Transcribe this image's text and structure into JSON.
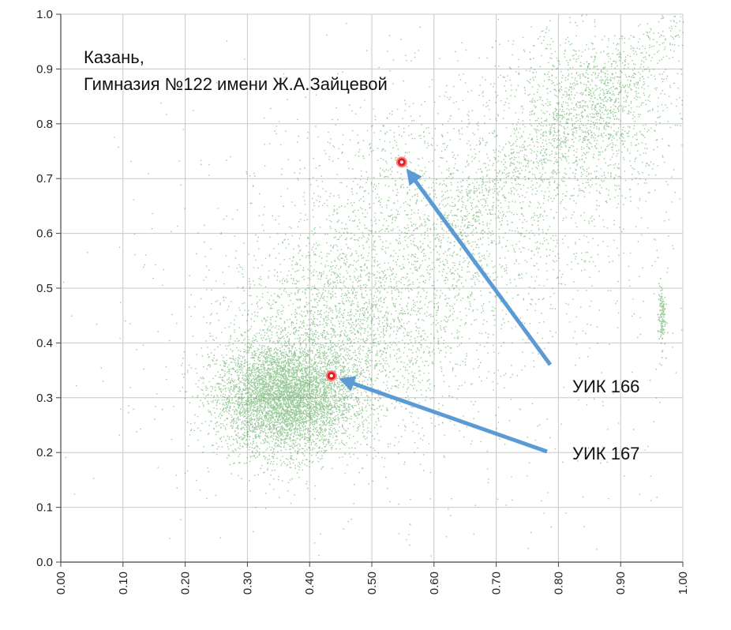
{
  "chart_data": {
    "type": "scatter",
    "title_lines": [
      "Казань,",
      "Гимназия №122 имени Ж.А.Зайцевой"
    ],
    "xlim": [
      0,
      1
    ],
    "ylim": [
      0,
      1
    ],
    "x_ticks": [
      "0.00",
      "0.10",
      "0.20",
      "0.30",
      "0.40",
      "0.50",
      "0.60",
      "0.70",
      "0.80",
      "0.90",
      "1.00"
    ],
    "y_ticks": [
      "0.0",
      "0.1",
      "0.2",
      "0.3",
      "0.4",
      "0.5",
      "0.6",
      "0.7",
      "0.8",
      "0.9",
      "1.0"
    ],
    "grid": true,
    "point_color": "#1f8a1f",
    "highlight_color": "#e02020",
    "arrow_color": "#5b9bd5",
    "clusters": [
      {
        "cx": 0.36,
        "cy": 0.3,
        "sx": 0.055,
        "sy": 0.05,
        "count": 5200
      },
      {
        "cx": 0.45,
        "cy": 0.42,
        "sx": 0.09,
        "sy": 0.09,
        "count": 2200
      },
      {
        "cx": 0.62,
        "cy": 0.62,
        "sx": 0.13,
        "sy": 0.12,
        "count": 2000
      },
      {
        "cx": 0.85,
        "cy": 0.82,
        "sx": 0.07,
        "sy": 0.08,
        "count": 1400
      },
      {
        "cx": 0.55,
        "cy": 0.45,
        "sx": 0.25,
        "sy": 0.25,
        "count": 900
      }
    ],
    "highlights": [
      {
        "label": "УИК 166",
        "x": 0.548,
        "y": 0.73
      },
      {
        "label": "УИК 167",
        "x": 0.435,
        "y": 0.34
      }
    ]
  }
}
